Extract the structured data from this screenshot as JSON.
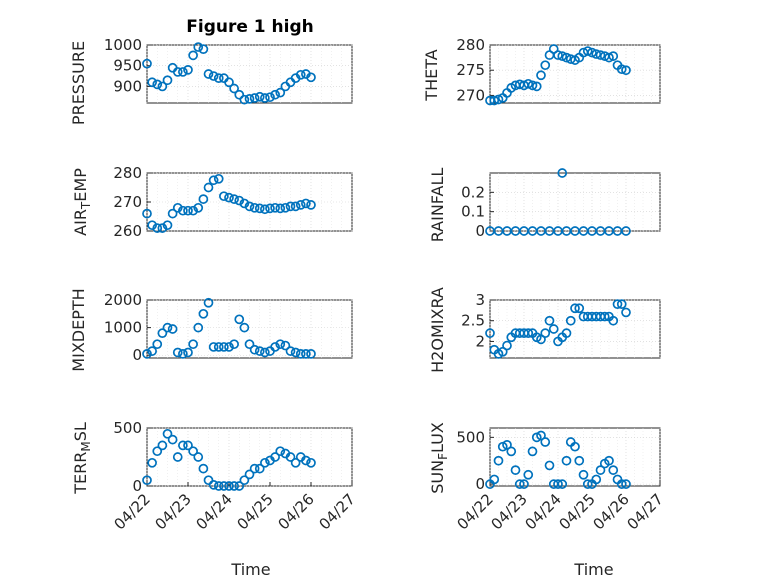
{
  "title": "Figure 1 high",
  "marker_color": "#0072BD",
  "chart_data": [
    {
      "type": "scatter",
      "ylabel": "PRESSURE",
      "xlabel": "",
      "xlim": [
        "04/22",
        "04/27"
      ],
      "ylim": [
        860,
        1000
      ],
      "yticks": [
        "900",
        "950",
        "1000"
      ],
      "x": [
        "04/22 00:00",
        "04/22 03:00",
        "04/22 06:00",
        "04/22 09:00",
        "04/22 12:00",
        "04/22 15:00",
        "04/22 18:00",
        "04/22 21:00",
        "04/23 00:00",
        "04/23 03:00",
        "04/23 06:00",
        "04/23 09:00",
        "04/23 12:00",
        "04/23 15:00",
        "04/23 18:00",
        "04/23 21:00",
        "04/24 00:00",
        "04/24 03:00",
        "04/24 06:00",
        "04/24 09:00",
        "04/24 12:00",
        "04/24 15:00",
        "04/24 18:00",
        "04/24 21:00",
        "04/25 00:00",
        "04/25 03:00",
        "04/25 06:00",
        "04/25 09:00",
        "04/25 12:00",
        "04/25 15:00",
        "04/25 18:00",
        "04/25 21:00",
        "04/26 00:00"
      ],
      "y": [
        955,
        910,
        905,
        900,
        915,
        945,
        935,
        935,
        940,
        975,
        995,
        990,
        930,
        925,
        920,
        920,
        910,
        895,
        880,
        868,
        870,
        872,
        875,
        872,
        874,
        880,
        885,
        900,
        910,
        920,
        928,
        930,
        922
      ]
    },
    {
      "type": "scatter",
      "ylabel": "THETA",
      "xlabel": "",
      "xlim": [
        "04/22",
        "04/27"
      ],
      "ylim": [
        268.5,
        280
      ],
      "yticks": [
        "270",
        "275",
        "280"
      ],
      "x": [
        "04/22 00:00",
        "04/22 03:00",
        "04/22 06:00",
        "04/22 09:00",
        "04/22 12:00",
        "04/22 15:00",
        "04/22 18:00",
        "04/22 21:00",
        "04/23 00:00",
        "04/23 03:00",
        "04/23 06:00",
        "04/23 09:00",
        "04/23 12:00",
        "04/23 15:00",
        "04/23 18:00",
        "04/23 21:00",
        "04/24 00:00",
        "04/24 03:00",
        "04/24 06:00",
        "04/24 09:00",
        "04/24 12:00",
        "04/24 15:00",
        "04/24 18:00",
        "04/24 21:00",
        "04/25 00:00",
        "04/25 03:00",
        "04/25 06:00",
        "04/25 09:00",
        "04/25 12:00",
        "04/25 15:00",
        "04/25 18:00",
        "04/25 21:00",
        "04/26 00:00"
      ],
      "y": [
        269,
        269,
        269.2,
        269.5,
        270.5,
        271.5,
        272,
        272.2,
        272,
        272.3,
        272,
        271.8,
        274,
        276,
        278,
        279.2,
        278,
        277.8,
        277.5,
        277.2,
        277,
        277.5,
        278.5,
        278.8,
        278.5,
        278.2,
        278,
        277.8,
        277.5,
        277.8,
        276,
        275.2,
        275
      ]
    },
    {
      "type": "scatter",
      "ylabel": "AIR_TEMP",
      "xlabel": "",
      "xlim": [
        "04/22",
        "04/27"
      ],
      "ylim": [
        260,
        280
      ],
      "yticks": [
        "260",
        "270",
        "280"
      ],
      "x": [
        "04/22 00:00",
        "04/22 03:00",
        "04/22 06:00",
        "04/22 09:00",
        "04/22 12:00",
        "04/22 15:00",
        "04/22 18:00",
        "04/22 21:00",
        "04/23 00:00",
        "04/23 03:00",
        "04/23 06:00",
        "04/23 09:00",
        "04/23 12:00",
        "04/23 15:00",
        "04/23 18:00",
        "04/23 21:00",
        "04/24 00:00",
        "04/24 03:00",
        "04/24 06:00",
        "04/24 09:00",
        "04/24 12:00",
        "04/24 15:00",
        "04/24 18:00",
        "04/24 21:00",
        "04/25 00:00",
        "04/25 03:00",
        "04/25 06:00",
        "04/25 09:00",
        "04/25 12:00",
        "04/25 15:00",
        "04/25 18:00",
        "04/25 21:00",
        "04/26 00:00"
      ],
      "y": [
        266,
        262,
        261,
        261,
        262,
        266,
        268,
        267,
        267,
        267,
        268,
        271,
        275,
        277.5,
        278,
        272,
        271.5,
        271,
        270.5,
        269.5,
        268.5,
        268,
        267.8,
        267.5,
        267.8,
        268,
        267.8,
        268,
        268.5,
        268.5,
        269,
        269.5,
        269
      ]
    },
    {
      "type": "scatter",
      "ylabel": "RAINFALL",
      "xlabel": "",
      "xlim": [
        "04/22",
        "04/27"
      ],
      "ylim": [
        0,
        0.3
      ],
      "yticks": [
        "0",
        "0.1",
        "0.2"
      ],
      "x": [
        "04/22 00:00",
        "04/22 06:00",
        "04/22 12:00",
        "04/22 18:00",
        "04/23 00:00",
        "04/23 06:00",
        "04/23 12:00",
        "04/23 18:00",
        "04/24 00:00",
        "04/24 03:00",
        "04/24 06:00",
        "04/24 12:00",
        "04/24 18:00",
        "04/25 00:00",
        "04/25 06:00",
        "04/25 12:00",
        "04/25 18:00",
        "04/26 00:00"
      ],
      "y": [
        0,
        0,
        0,
        0,
        0,
        0,
        0,
        0,
        0,
        0.3,
        0,
        0,
        0,
        0,
        0,
        0,
        0,
        0
      ]
    },
    {
      "type": "scatter",
      "ylabel": "MIXDEPTH",
      "xlabel": "",
      "xlim": [
        "04/22",
        "04/27"
      ],
      "ylim": [
        -100,
        2000
      ],
      "yticks": [
        "0",
        "1000",
        "2000"
      ],
      "x": [
        "04/22 00:00",
        "04/22 03:00",
        "04/22 06:00",
        "04/22 09:00",
        "04/22 12:00",
        "04/22 15:00",
        "04/22 18:00",
        "04/22 21:00",
        "04/23 00:00",
        "04/23 03:00",
        "04/23 06:00",
        "04/23 09:00",
        "04/23 12:00",
        "04/23 15:00",
        "04/23 18:00",
        "04/23 21:00",
        "04/24 00:00",
        "04/24 03:00",
        "04/24 06:00",
        "04/24 09:00",
        "04/24 12:00",
        "04/24 15:00",
        "04/24 18:00",
        "04/24 21:00",
        "04/25 00:00",
        "04/25 03:00",
        "04/25 06:00",
        "04/25 09:00",
        "04/25 12:00",
        "04/25 15:00",
        "04/25 18:00",
        "04/25 21:00",
        "04/26 00:00"
      ],
      "y": [
        50,
        150,
        400,
        800,
        1000,
        950,
        100,
        50,
        100,
        400,
        1000,
        1500,
        1900,
        300,
        300,
        300,
        300,
        400,
        1300,
        1000,
        400,
        200,
        150,
        100,
        150,
        300,
        400,
        350,
        150,
        100,
        50,
        50,
        50
      ]
    },
    {
      "type": "scatter",
      "ylabel": "H2OMIXRA",
      "xlabel": "",
      "xlim": [
        "04/22",
        "04/27"
      ],
      "ylim": [
        1.6,
        3.0
      ],
      "yticks": [
        "2",
        "2.5",
        "3"
      ],
      "x": [
        "04/22 00:00",
        "04/22 03:00",
        "04/22 06:00",
        "04/22 09:00",
        "04/22 12:00",
        "04/22 15:00",
        "04/22 18:00",
        "04/22 21:00",
        "04/23 00:00",
        "04/23 03:00",
        "04/23 06:00",
        "04/23 09:00",
        "04/23 12:00",
        "04/23 15:00",
        "04/23 18:00",
        "04/23 21:00",
        "04/24 00:00",
        "04/24 03:00",
        "04/24 06:00",
        "04/24 09:00",
        "04/24 12:00",
        "04/24 15:00",
        "04/24 18:00",
        "04/24 21:00",
        "04/25 00:00",
        "04/25 03:00",
        "04/25 06:00",
        "04/25 09:00",
        "04/25 12:00",
        "04/25 15:00",
        "04/25 18:00",
        "04/25 21:00",
        "04/26 00:00"
      ],
      "y": [
        2.2,
        1.8,
        1.7,
        1.75,
        1.9,
        2.1,
        2.2,
        2.2,
        2.2,
        2.2,
        2.2,
        2.1,
        2.05,
        2.2,
        2.5,
        2.3,
        2.0,
        2.1,
        2.2,
        2.5,
        2.8,
        2.8,
        2.6,
        2.6,
        2.6,
        2.6,
        2.6,
        2.6,
        2.6,
        2.5,
        2.9,
        2.9,
        2.7
      ]
    },
    {
      "type": "scatter",
      "ylabel": "TERR_MSL",
      "xlabel": "Time",
      "xlim": [
        "04/22",
        "04/27"
      ],
      "xticks": [
        "04/22",
        "04/23",
        "04/24",
        "04/25",
        "04/26",
        "04/27"
      ],
      "ylim": [
        0,
        500
      ],
      "yticks": [
        "0",
        "500"
      ],
      "x": [
        "04/22 00:00",
        "04/22 03:00",
        "04/22 06:00",
        "04/22 09:00",
        "04/22 12:00",
        "04/22 15:00",
        "04/22 18:00",
        "04/22 21:00",
        "04/23 00:00",
        "04/23 03:00",
        "04/23 06:00",
        "04/23 09:00",
        "04/23 12:00",
        "04/23 15:00",
        "04/23 18:00",
        "04/23 21:00",
        "04/24 00:00",
        "04/24 03:00",
        "04/24 06:00",
        "04/24 09:00",
        "04/24 12:00",
        "04/24 15:00",
        "04/24 18:00",
        "04/24 21:00",
        "04/25 00:00",
        "04/25 03:00",
        "04/25 06:00",
        "04/25 09:00",
        "04/25 12:00",
        "04/25 15:00",
        "04/25 18:00",
        "04/25 21:00",
        "04/26 00:00"
      ],
      "y": [
        50,
        200,
        300,
        350,
        450,
        400,
        250,
        350,
        350,
        300,
        250,
        150,
        50,
        10,
        0,
        0,
        0,
        0,
        0,
        50,
        100,
        150,
        150,
        200,
        220,
        250,
        300,
        280,
        250,
        200,
        250,
        220,
        200
      ]
    },
    {
      "type": "scatter",
      "ylabel": "SUN_FLUX",
      "xlabel": "Time",
      "xlim": [
        "04/22",
        "04/27"
      ],
      "xticks": [
        "04/22",
        "04/23",
        "04/24",
        "04/25",
        "04/26",
        "04/27"
      ],
      "ylim": [
        -20,
        600
      ],
      "yticks": [
        "0",
        "500"
      ],
      "x": [
        "04/22 00:00",
        "04/22 03:00",
        "04/22 06:00",
        "04/22 09:00",
        "04/22 12:00",
        "04/22 15:00",
        "04/22 18:00",
        "04/22 21:00",
        "04/23 00:00",
        "04/23 03:00",
        "04/23 06:00",
        "04/23 09:00",
        "04/23 12:00",
        "04/23 15:00",
        "04/23 18:00",
        "04/23 21:00",
        "04/24 00:00",
        "04/24 03:00",
        "04/24 06:00",
        "04/24 09:00",
        "04/24 12:00",
        "04/24 15:00",
        "04/24 18:00",
        "04/24 21:00",
        "04/25 00:00",
        "04/25 03:00",
        "04/25 06:00",
        "04/25 09:00",
        "04/25 12:00",
        "04/25 15:00",
        "04/25 18:00",
        "04/25 21:00",
        "04/26 00:00"
      ],
      "y": [
        0,
        50,
        250,
        400,
        420,
        350,
        150,
        0,
        0,
        100,
        350,
        500,
        520,
        450,
        200,
        0,
        0,
        0,
        250,
        450,
        400,
        250,
        100,
        0,
        0,
        50,
        150,
        220,
        250,
        150,
        50,
        0,
        0
      ]
    }
  ]
}
